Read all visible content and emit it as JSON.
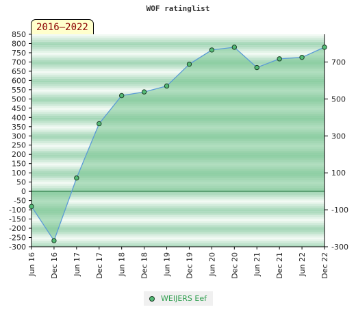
{
  "title": "WOF ratinglist",
  "period": "2016–2022",
  "colors": {
    "area_fill": "#7cc794",
    "line": "#5b9bd5",
    "marker_fill": "#55bb77",
    "marker_stroke": "#1b3d25",
    "band_dark": "#a9d9b8",
    "band_light": "#e8f5ec",
    "legend_text": "#2e9e4e"
  },
  "legend": {
    "label": "WEIJERS Eef"
  },
  "chart_data": {
    "type": "area",
    "title": "WOF ratinglist",
    "x": [
      "Jun 16",
      "Dec 16",
      "Jun 17",
      "Dec 17",
      "Jun 18",
      "Dec 18",
      "Jun 19",
      "Dec 19",
      "Jun 20",
      "Dec 20",
      "Jun 21",
      "Dec 21",
      "Jun 22",
      "Dec 22"
    ],
    "series": [
      {
        "name": "WEIJERS Eef",
        "values": [
          -82,
          -267,
          72,
          366,
          518,
          538,
          570,
          688,
          765,
          780,
          670,
          717,
          725,
          780
        ]
      }
    ],
    "ylim": [
      -300,
      850
    ],
    "left_ticks": [
      850,
      800,
      750,
      700,
      650,
      600,
      550,
      500,
      450,
      400,
      350,
      300,
      250,
      200,
      150,
      100,
      50,
      0,
      -50,
      -100,
      -150,
      -200,
      -250,
      -300
    ],
    "right_ticks": [
      700,
      500,
      300,
      100,
      -100,
      -300
    ],
    "grid": "horizontal-bands",
    "legend_position": "bottom-center"
  }
}
